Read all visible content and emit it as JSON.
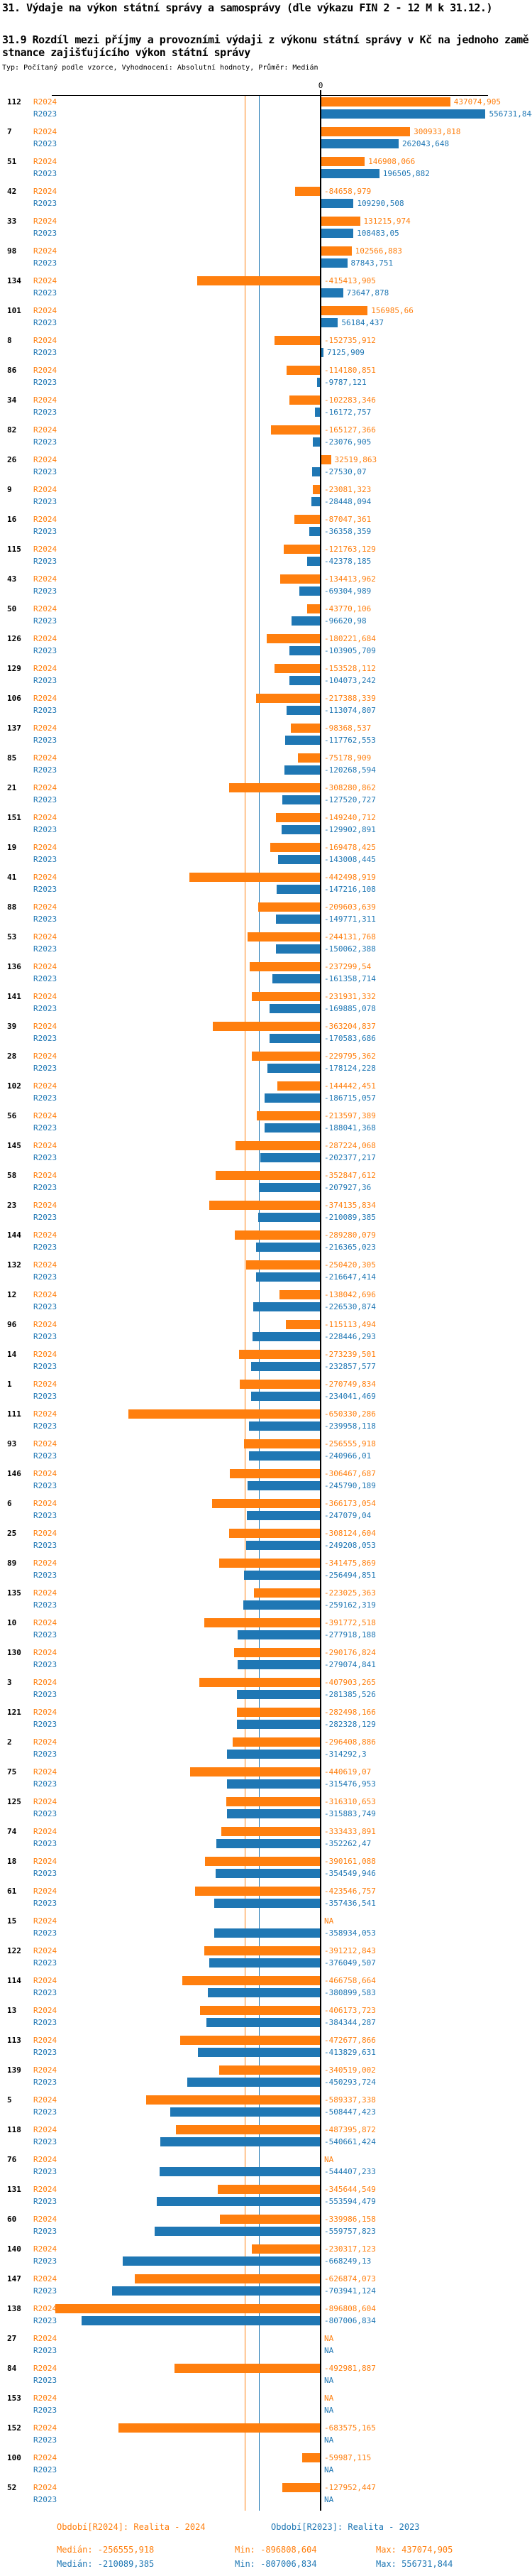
{
  "header": {
    "title": "31. Výdaje na výkon státní správy a samosprávy (dle výkazu FIN 2 - 12 M k 31.12.)",
    "subtitle": "31.9 Rozdíl mezi příjmy a provozními výdaji z výkonu státní správy v Kč na jednoho zaměstnance zajišťujícího výkon státní správy",
    "meta": "Typ: Počítaný podle vzorce, Vyhodnocení: Absolutní hodnoty, Průměr: Medián"
  },
  "chart_data": {
    "type": "bar",
    "orientation": "horizontal",
    "title": "31.9 Rozdíl mezi příjmy a provozními výdaji z výkonu státní správy v Kč na jednoho zaměstnance zajišťujícího výkon státní správy",
    "axis_zero_label": "0",
    "na_text": "NA",
    "legend_position": "per-row",
    "grid": false,
    "series_meta": [
      {
        "key": "r2024",
        "label": "R2024",
        "color": "#ff7f0e",
        "period": "Realita - 2024"
      },
      {
        "key": "r2023",
        "label": "R2023",
        "color": "#1f77b4",
        "period": "Realita - 2023"
      }
    ],
    "rows": [
      {
        "id": "112",
        "r2024": "437074,905",
        "r2023": "556731,844"
      },
      {
        "id": "7",
        "r2024": "300933,818",
        "r2023": "262043,648"
      },
      {
        "id": "51",
        "r2024": "146908,066",
        "r2023": "196505,882"
      },
      {
        "id": "42",
        "r2024": "-84658,979",
        "r2023": "109290,508"
      },
      {
        "id": "33",
        "r2024": "131215,974",
        "r2023": "108483,05"
      },
      {
        "id": "98",
        "r2024": "102566,883",
        "r2023": "87843,751"
      },
      {
        "id": "134",
        "r2024": "-415413,905",
        "r2023": "73647,878"
      },
      {
        "id": "101",
        "r2024": "156985,66",
        "r2023": "56184,437"
      },
      {
        "id": "8",
        "r2024": "-152735,912",
        "r2023": "7125,909"
      },
      {
        "id": "86",
        "r2024": "-114180,851",
        "r2023": "-9787,121"
      },
      {
        "id": "34",
        "r2024": "-102283,346",
        "r2023": "-16172,757"
      },
      {
        "id": "82",
        "r2024": "-165127,366",
        "r2023": "-23076,905"
      },
      {
        "id": "26",
        "r2024": "32519,863",
        "r2023": "-27530,07"
      },
      {
        "id": "9",
        "r2024": "-23081,323",
        "r2023": "-28448,094"
      },
      {
        "id": "16",
        "r2024": "-87047,361",
        "r2023": "-36358,359"
      },
      {
        "id": "115",
        "r2024": "-121763,129",
        "r2023": "-42378,185"
      },
      {
        "id": "43",
        "r2024": "-134413,962",
        "r2023": "-69304,989"
      },
      {
        "id": "50",
        "r2024": "-43770,106",
        "r2023": "-96620,98"
      },
      {
        "id": "126",
        "r2024": "-180221,684",
        "r2023": "-103905,709"
      },
      {
        "id": "129",
        "r2024": "-153528,112",
        "r2023": "-104073,242"
      },
      {
        "id": "106",
        "r2024": "-217388,339",
        "r2023": "-113074,807"
      },
      {
        "id": "137",
        "r2024": "-98368,537",
        "r2023": "-117762,553"
      },
      {
        "id": "85",
        "r2024": "-75178,909",
        "r2023": "-120268,594"
      },
      {
        "id": "21",
        "r2024": "-308280,862",
        "r2023": "-127520,727"
      },
      {
        "id": "151",
        "r2024": "-149240,712",
        "r2023": "-129902,891"
      },
      {
        "id": "19",
        "r2024": "-169478,425",
        "r2023": "-143008,445"
      },
      {
        "id": "41",
        "r2024": "-442498,919",
        "r2023": "-147216,108"
      },
      {
        "id": "88",
        "r2024": "-209603,639",
        "r2023": "-149771,311"
      },
      {
        "id": "53",
        "r2024": "-244131,768",
        "r2023": "-150062,388"
      },
      {
        "id": "136",
        "r2024": "-237299,54",
        "r2023": "-161358,714"
      },
      {
        "id": "141",
        "r2024": "-231931,332",
        "r2023": "-169885,078"
      },
      {
        "id": "39",
        "r2024": "-363204,837",
        "r2023": "-170583,686"
      },
      {
        "id": "28",
        "r2024": "-229795,362",
        "r2023": "-178124,228"
      },
      {
        "id": "102",
        "r2024": "-144442,451",
        "r2023": "-186715,057"
      },
      {
        "id": "56",
        "r2024": "-213597,389",
        "r2023": "-188041,368"
      },
      {
        "id": "145",
        "r2024": "-287224,068",
        "r2023": "-202377,217"
      },
      {
        "id": "58",
        "r2024": "-352847,612",
        "r2023": "-207927,36"
      },
      {
        "id": "23",
        "r2024": "-374135,834",
        "r2023": "-210089,385"
      },
      {
        "id": "144",
        "r2024": "-289280,079",
        "r2023": "-216365,023"
      },
      {
        "id": "132",
        "r2024": "-250420,305",
        "r2023": "-216647,414"
      },
      {
        "id": "12",
        "r2024": "-138042,696",
        "r2023": "-226530,874"
      },
      {
        "id": "96",
        "r2024": "-115113,494",
        "r2023": "-228446,293"
      },
      {
        "id": "14",
        "r2024": "-273239,501",
        "r2023": "-232857,577"
      },
      {
        "id": "1",
        "r2024": "-270749,834",
        "r2023": "-234041,469"
      },
      {
        "id": "111",
        "r2024": "-650330,286",
        "r2023": "-239958,118"
      },
      {
        "id": "93",
        "r2024": "-256555,918",
        "r2023": "-240966,01"
      },
      {
        "id": "146",
        "r2024": "-306467,687",
        "r2023": "-245790,189"
      },
      {
        "id": "6",
        "r2024": "-366173,054",
        "r2023": "-247079,04"
      },
      {
        "id": "25",
        "r2024": "-308124,604",
        "r2023": "-249208,053"
      },
      {
        "id": "89",
        "r2024": "-341475,869",
        "r2023": "-256494,851"
      },
      {
        "id": "135",
        "r2024": "-223025,363",
        "r2023": "-259162,319"
      },
      {
        "id": "10",
        "r2024": "-391772,518",
        "r2023": "-277918,188"
      },
      {
        "id": "130",
        "r2024": "-290176,824",
        "r2023": "-279074,841"
      },
      {
        "id": "3",
        "r2024": "-407903,265",
        "r2023": "-281385,526"
      },
      {
        "id": "121",
        "r2024": "-282498,166",
        "r2023": "-282328,129"
      },
      {
        "id": "2",
        "r2024": "-296408,886",
        "r2023": "-314292,3"
      },
      {
        "id": "75",
        "r2024": "-440619,07",
        "r2023": "-315476,953"
      },
      {
        "id": "125",
        "r2024": "-316310,653",
        "r2023": "-315883,749"
      },
      {
        "id": "74",
        "r2024": "-333433,891",
        "r2023": "-352262,47"
      },
      {
        "id": "18",
        "r2024": "-390161,088",
        "r2023": "-354549,946"
      },
      {
        "id": "61",
        "r2024": "-423546,757",
        "r2023": "-357436,541"
      },
      {
        "id": "15",
        "r2024": "NA",
        "r2023": "-358934,053"
      },
      {
        "id": "122",
        "r2024": "-391212,843",
        "r2023": "-376049,507"
      },
      {
        "id": "114",
        "r2024": "-466758,664",
        "r2023": "-380899,583"
      },
      {
        "id": "13",
        "r2024": "-406173,723",
        "r2023": "-384344,287"
      },
      {
        "id": "113",
        "r2024": "-472677,866",
        "r2023": "-413829,631"
      },
      {
        "id": "139",
        "r2024": "-340519,002",
        "r2023": "-450293,724"
      },
      {
        "id": "5",
        "r2024": "-589337,338",
        "r2023": "-508447,423"
      },
      {
        "id": "118",
        "r2024": "-487395,872",
        "r2023": "-540661,424"
      },
      {
        "id": "76",
        "r2024": "NA",
        "r2023": "-544407,233"
      },
      {
        "id": "131",
        "r2024": "-345644,549",
        "r2023": "-553594,479"
      },
      {
        "id": "60",
        "r2024": "-339986,158",
        "r2023": "-559757,823"
      },
      {
        "id": "140",
        "r2024": "-230317,123",
        "r2023": "-668249,13"
      },
      {
        "id": "147",
        "r2024": "-626874,073",
        "r2023": "-703941,124"
      },
      {
        "id": "138",
        "r2024": "-896808,604",
        "r2023": "-807006,834"
      },
      {
        "id": "27",
        "r2024": "NA",
        "r2023": "NA"
      },
      {
        "id": "84",
        "r2024": "-492981,887",
        "r2023": "NA"
      },
      {
        "id": "153",
        "r2024": "NA",
        "r2023": "NA"
      },
      {
        "id": "152",
        "r2024": "-683575,165",
        "r2023": "NA"
      },
      {
        "id": "100",
        "r2024": "-59987,115",
        "r2023": "NA"
      },
      {
        "id": "52",
        "r2024": "-127952,447",
        "r2023": "NA"
      }
    ],
    "medians": {
      "r2024": "-256555,918",
      "r2023": "-210089,385"
    },
    "footer": {
      "period_r2024": "Období[R2024]: Realita - 2024",
      "period_r2023": "Období[R2023]: Realita - 2023",
      "median_r2024": "Medián: -256555,918",
      "min_r2024": "Min: -896808,604",
      "max_r2024": "Max: 437074,905",
      "median_r2023": "Medián: -210089,385",
      "min_r2023": "Min: -807006,834",
      "max_r2023": "Max: 556731,844"
    }
  }
}
